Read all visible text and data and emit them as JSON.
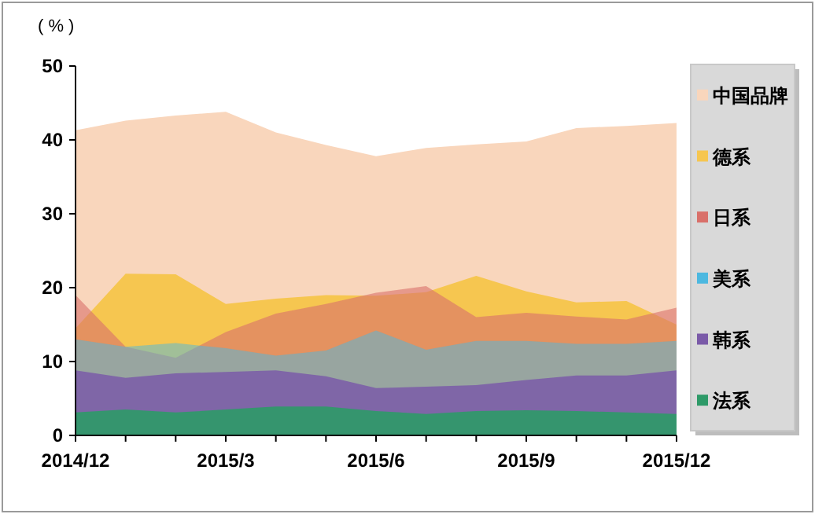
{
  "chart_data": {
    "type": "area",
    "ylabel": "( % )",
    "categories": [
      "2014/12",
      null,
      null,
      "2015/3",
      null,
      null,
      "2015/6",
      null,
      null,
      "2015/9",
      null,
      null,
      "2015/12"
    ],
    "ylim": [
      0,
      50
    ],
    "yticks": [
      0,
      10,
      20,
      30,
      40,
      50
    ],
    "grid": false,
    "legend": "right",
    "series": [
      {
        "name": "中国品牌",
        "color": "#f9d6bc",
        "values": [
          41.3,
          42.6,
          43.3,
          43.8,
          41.0,
          39.3,
          37.8,
          38.9,
          39.4,
          39.8,
          41.6,
          41.9,
          42.3
        ]
      },
      {
        "name": "德系",
        "color": "#f6c650",
        "values": [
          14.5,
          21.9,
          21.8,
          17.8,
          18.5,
          19.0,
          18.9,
          19.4,
          21.6,
          19.5,
          18.0,
          18.2,
          15.0
        ]
      },
      {
        "name": "日系",
        "color": "#d9706a",
        "values": [
          19.0,
          12.0,
          10.5,
          14.0,
          16.5,
          17.8,
          19.3,
          20.2,
          16.0,
          16.6,
          16.1,
          15.7,
          17.3
        ]
      },
      {
        "name": "美系",
        "color": "#4cb8e0",
        "values": [
          13.0,
          12.0,
          12.5,
          11.8,
          10.8,
          11.5,
          14.2,
          11.6,
          12.8,
          12.8,
          12.4,
          12.4,
          12.8
        ]
      },
      {
        "name": "韩系",
        "color": "#7a5aa8",
        "values": [
          8.8,
          7.8,
          8.4,
          8.6,
          8.8,
          8.0,
          6.4,
          6.6,
          6.8,
          7.5,
          8.1,
          8.1,
          8.8
        ]
      },
      {
        "name": "法系",
        "color": "#2e9a68",
        "values": [
          3.1,
          3.5,
          3.1,
          3.5,
          3.9,
          3.9,
          3.3,
          2.9,
          3.3,
          3.4,
          3.3,
          3.1,
          2.9
        ]
      }
    ]
  }
}
